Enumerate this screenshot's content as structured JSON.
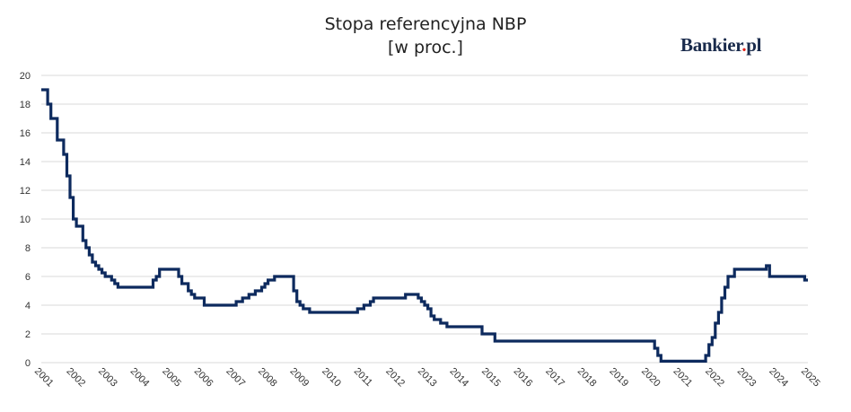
{
  "logo": {
    "text_main": "Bankier",
    "text_dot": ".",
    "text_tld": "pl"
  },
  "chart_data": {
    "type": "line",
    "title": "Stopa referencyjna NBP",
    "subtitle": "[w proc.]",
    "xlabel": "",
    "ylabel": "",
    "xlim": [
      2001,
      2025
    ],
    "ylim": [
      0,
      20
    ],
    "y_ticks": [
      0,
      2,
      4,
      6,
      8,
      10,
      12,
      14,
      16,
      18,
      20
    ],
    "x_ticks": [
      "2001",
      "2002",
      "2003",
      "2004",
      "2005",
      "2006",
      "2007",
      "2008",
      "2009",
      "2010",
      "2011",
      "2012",
      "2013",
      "2014",
      "2015",
      "2016",
      "2017",
      "2018",
      "2019",
      "2020",
      "2021",
      "2022",
      "2023",
      "2024",
      "2025"
    ],
    "grid": "horizontal",
    "step": true,
    "colors": {
      "line": "#0d2a5e",
      "grid": "#d9d9d9"
    },
    "series": [
      {
        "x": [
          2001.0,
          2001.2,
          2001.3,
          2001.5,
          2001.7,
          2001.8,
          2001.9,
          2002.0,
          2002.1,
          2002.3,
          2002.4,
          2002.5,
          2002.6,
          2002.7,
          2002.8,
          2002.9,
          2003.0,
          2003.2,
          2003.3,
          2003.4,
          2003.5,
          2003.6,
          2004.5,
          2004.6,
          2004.7,
          2005.3,
          2005.4,
          2005.6,
          2005.7,
          2005.8,
          2006.1,
          2007.1,
          2007.3,
          2007.5,
          2007.7,
          2007.9,
          2008.0,
          2008.1,
          2008.3,
          2008.9,
          2009.0,
          2009.1,
          2009.2,
          2009.4,
          2010.9,
          2011.1,
          2011.3,
          2011.4,
          2012.4,
          2012.8,
          2012.9,
          2013.0,
          2013.1,
          2013.2,
          2013.3,
          2013.5,
          2013.7,
          2014.8,
          2015.2,
          2020.2,
          2020.3,
          2020.4,
          2021.8,
          2021.9,
          2022.0,
          2022.1,
          2022.2,
          2022.3,
          2022.4,
          2022.5,
          2022.7,
          2023.7,
          2023.8,
          2024.9
        ],
        "y": [
          19,
          18,
          17,
          15.5,
          14.5,
          13,
          11.5,
          10,
          9.5,
          8.5,
          8,
          7.5,
          7,
          6.75,
          6.5,
          6.25,
          6,
          5.75,
          5.5,
          5.25,
          5.25,
          5.25,
          5.75,
          6,
          6.5,
          6,
          5.5,
          5,
          4.75,
          4.5,
          4,
          4.25,
          4.5,
          4.75,
          5,
          5.25,
          5.5,
          5.75,
          6,
          5,
          4.25,
          4,
          3.75,
          3.5,
          3.75,
          4,
          4.25,
          4.5,
          4.75,
          4.5,
          4.25,
          4,
          3.75,
          3.25,
          3,
          2.75,
          2.5,
          2,
          1.5,
          1,
          0.5,
          0.1,
          0.5,
          1.25,
          1.75,
          2.75,
          3.5,
          4.5,
          5.25,
          6,
          6.5,
          6.75,
          6,
          5.75
        ]
      }
    ]
  }
}
